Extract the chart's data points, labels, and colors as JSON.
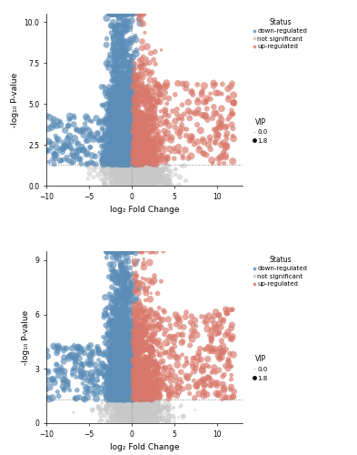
{
  "plots": [
    {
      "xlim": [
        -10,
        13
      ],
      "ylim": [
        0.0,
        10.5
      ],
      "yticks": [
        0.0,
        2.5,
        5.0,
        7.5,
        10.0
      ],
      "hline_y": 1.3,
      "vline_x": 0.0,
      "xlabel": "log₂ Fold Change",
      "ylabel": "-log₁₀ P-value",
      "down_color": "#5B8DB8",
      "up_color": "#D9786A",
      "ns_color": "#C8C8C8",
      "seed": 42,
      "n_down_tight": 2800,
      "n_down_spread": 200,
      "n_up_tight": 600,
      "n_up_spread": 250,
      "n_ns": 800
    },
    {
      "xlim": [
        -10,
        13
      ],
      "ylim": [
        0.0,
        9.5
      ],
      "yticks": [
        0,
        3,
        6,
        9
      ],
      "hline_y": 1.3,
      "vline_x": 0.0,
      "xlabel": "log₂ Fold Change",
      "ylabel": "-log₁₀ P-value",
      "down_color": "#5B8DB8",
      "up_color": "#D9786A",
      "ns_color": "#C8C8C8",
      "seed": 77,
      "n_down_tight": 2200,
      "n_down_spread": 200,
      "n_up_tight": 700,
      "n_up_spread": 300,
      "n_ns": 600
    }
  ],
  "legend_status_title": "Status",
  "legend_vip_title": "VIP",
  "legend_entries": [
    "down-regulated",
    "not significant",
    "up-regulated"
  ],
  "vip_labels": [
    "0.0",
    "1.8"
  ],
  "background_color": "#FFFFFF",
  "panel_bg": "#FFFFFF"
}
